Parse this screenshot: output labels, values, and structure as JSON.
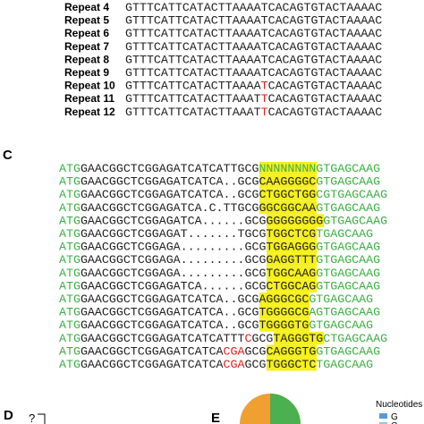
{
  "panel_top": {
    "rows": [
      {
        "label": "Repeat 4",
        "segments": [
          {
            "text": "GTTTCATTCATACTTAAAATCACAGTGTACTAAAAC",
            "style": "plain"
          }
        ]
      },
      {
        "label": "Repeat 5",
        "segments": [
          {
            "text": "GTTTCATTCATACTTAAAATCACAGTGTACTAAAAC",
            "style": "plain"
          }
        ]
      },
      {
        "label": "Repeat 6",
        "segments": [
          {
            "text": "GTTTCATTCATACTTAAAATCACAGTGTACTAAAAC",
            "style": "plain"
          }
        ]
      },
      {
        "label": "Repeat 7",
        "segments": [
          {
            "text": "GTTTCATTCATACTTAAAATCACAGTGTACTAAAAC",
            "style": "plain"
          }
        ]
      },
      {
        "label": "Repeat 8",
        "segments": [
          {
            "text": "GTTTCATTCATACTTAAAATCACAGTGTACTAAAAC",
            "style": "plain"
          }
        ]
      },
      {
        "label": "Repeat 9",
        "segments": [
          {
            "text": "GTTTCATTCATACTTAAAATCACAGTGTACTAAAAC",
            "style": "plain"
          }
        ]
      },
      {
        "label": "Repeat 10",
        "segments": [
          {
            "text": "GTTTCATTCATACTTAAAA",
            "style": "plain"
          },
          {
            "text": "T",
            "style": "red"
          },
          {
            "text": "CACAGTGTACTAAAAC",
            "style": "plain"
          }
        ]
      },
      {
        "label": "Repeat 11",
        "segments": [
          {
            "text": "GTTTCATTCATACTTAAAT",
            "style": "plain"
          },
          {
            "text": "T",
            "style": "red"
          },
          {
            "text": "CACAGTGTACTAAAAC",
            "style": "plain"
          }
        ]
      },
      {
        "label": "Repeat 12",
        "segments": [
          {
            "text": "GTTTCATTCATACTTAAAT",
            "style": "plain"
          },
          {
            "text": "T",
            "style": "red"
          },
          {
            "text": "CACAGTGTACTAAAAC",
            "style": "plain"
          }
        ]
      }
    ]
  },
  "panel_c": {
    "letter": "C",
    "rows": [
      {
        "segments": [
          {
            "text": "ATG",
            "style": "green"
          },
          {
            "text": "GAACGGCTCGGAGATCATCATTGCG",
            "style": "plain"
          },
          {
            "text": "NNNNNNNN",
            "style": "highlight-green"
          },
          {
            "text": "GTGAGCAAG",
            "style": "green"
          }
        ]
      },
      {
        "segments": [
          {
            "text": "ATG",
            "style": "green"
          },
          {
            "text": "GAACGGCTCGGAGATCATCA..GCG",
            "style": "plain"
          },
          {
            "text": "CAAGGGGC",
            "style": "highlight"
          },
          {
            "text": "GTGAGCAAG",
            "style": "green"
          }
        ]
      },
      {
        "segments": [
          {
            "text": "ATG",
            "style": "green"
          },
          {
            "text": "GAACGGCTCGGAGATCATCA..GCG",
            "style": "plain"
          },
          {
            "text": "CTGGCTGG",
            "style": "highlight"
          },
          {
            "text": "CGTGAGCAAG",
            "style": "green"
          }
        ]
      },
      {
        "segments": [
          {
            "text": "ATG",
            "style": "green"
          },
          {
            "text": "GAACGGCTCGGAGATCA.C.TTGCG",
            "style": "plain"
          },
          {
            "text": "GGCGGCAA",
            "style": "highlight"
          },
          {
            "text": "GTGAGCAAG",
            "style": "green"
          }
        ]
      },
      {
        "segments": [
          {
            "text": "ATG",
            "style": "green"
          },
          {
            "text": "GAACGGCTCGGAGATCA......GCG",
            "style": "plain"
          },
          {
            "text": "GGGGGGGG",
            "style": "highlight"
          },
          {
            "text": "GTGAGCAAG",
            "style": "green"
          }
        ]
      },
      {
        "segments": [
          {
            "text": "ATG",
            "style": "green"
          },
          {
            "text": "GAACGGCTCGGAGAT.......TGCG",
            "style": "plain"
          },
          {
            "text": "TGGCTCG",
            "style": "highlight"
          },
          {
            "text": "TGAGCAAG",
            "style": "green"
          }
        ]
      },
      {
        "segments": [
          {
            "text": "ATG",
            "style": "green"
          },
          {
            "text": "GAACGGCTCGGAGA.........GCG",
            "style": "plain"
          },
          {
            "text": "TGGAGGG",
            "style": "highlight"
          },
          {
            "text": "GTGAGCAAG",
            "style": "green"
          }
        ]
      },
      {
        "segments": [
          {
            "text": "ATG",
            "style": "green"
          },
          {
            "text": "GAACGGCTCGGAGA.........GCG",
            "style": "plain"
          },
          {
            "text": "GAGGTTT",
            "style": "highlight"
          },
          {
            "text": "GTGAGCAAG",
            "style": "green"
          }
        ]
      },
      {
        "segments": [
          {
            "text": "ATG",
            "style": "green"
          },
          {
            "text": "GAACGGCTCGGAGA.........GCG",
            "style": "plain"
          },
          {
            "text": "TGGCAAG",
            "style": "highlight"
          },
          {
            "text": "GTGAGCAAG",
            "style": "green"
          }
        ]
      },
      {
        "segments": [
          {
            "text": "ATG",
            "style": "green"
          },
          {
            "text": "GAACGGCTCGGAGATCA......GCG",
            "style": "plain"
          },
          {
            "text": "CTGGCAG",
            "style": "highlight"
          },
          {
            "text": "GTGAGCAAG",
            "style": "green"
          }
        ]
      },
      {
        "segments": [
          {
            "text": "ATG",
            "style": "green"
          },
          {
            "text": "GAACGGCTCGGAGATCATCA..GCG",
            "style": "plain"
          },
          {
            "text": "AGGGCGC",
            "style": "highlight"
          },
          {
            "text": "GTGAGCAAG",
            "style": "green"
          }
        ]
      },
      {
        "segments": [
          {
            "text": "ATG",
            "style": "green"
          },
          {
            "text": "GAACGGCTCGGAGATCATCA..GCG",
            "style": "plain"
          },
          {
            "text": "TGGGGCG",
            "style": "highlight"
          },
          {
            "text": "AGTGAGCAAG",
            "style": "green"
          }
        ]
      },
      {
        "segments": [
          {
            "text": "ATG",
            "style": "green"
          },
          {
            "text": "GAACGGCTCGGAGATCATCA..GCG",
            "style": "plain"
          },
          {
            "text": "TGGGGTG",
            "style": "highlight"
          },
          {
            "text": "GTGAGCAAG",
            "style": "green"
          }
        ]
      },
      {
        "segments": [
          {
            "text": "ATG",
            "style": "green"
          },
          {
            "text": "GAACGGCTCGGAGATCATCATTT",
            "style": "plain"
          },
          {
            "text": "C",
            "style": "red"
          },
          {
            "text": "GCG",
            "style": "plain"
          },
          {
            "text": "TAGGGTG",
            "style": "highlight"
          },
          {
            "text": "CTGAGCAAG",
            "style": "green"
          }
        ]
      },
      {
        "segments": [
          {
            "text": "ATG",
            "style": "green"
          },
          {
            "text": "GAACGGCTCGGAGATCATCA",
            "style": "plain"
          },
          {
            "text": "CGA",
            "style": "red"
          },
          {
            "text": "GCG",
            "style": "plain"
          },
          {
            "text": "CAGGGTG",
            "style": "highlight"
          },
          {
            "text": "GTGAGCAAG",
            "style": "green"
          }
        ]
      },
      {
        "segments": [
          {
            "text": "ATG",
            "style": "green"
          },
          {
            "text": "GAACGGCTCGGAGATCATCA",
            "style": "plain"
          },
          {
            "text": "CGA",
            "style": "red"
          },
          {
            "text": "GCG",
            "style": "plain"
          },
          {
            "text": "TGGGCTC",
            "style": "highlight"
          },
          {
            "text": "TGAGCAAG",
            "style": "green"
          }
        ]
      }
    ]
  },
  "panel_d": {
    "letter": "D",
    "mark": "?"
  },
  "panel_e": {
    "letter": "E",
    "legend_title": "Nucleotides",
    "legend": [
      {
        "label": "G",
        "color": "#5b9bd5"
      },
      {
        "label": "C",
        "color": "#9dc3e6"
      }
    ]
  }
}
